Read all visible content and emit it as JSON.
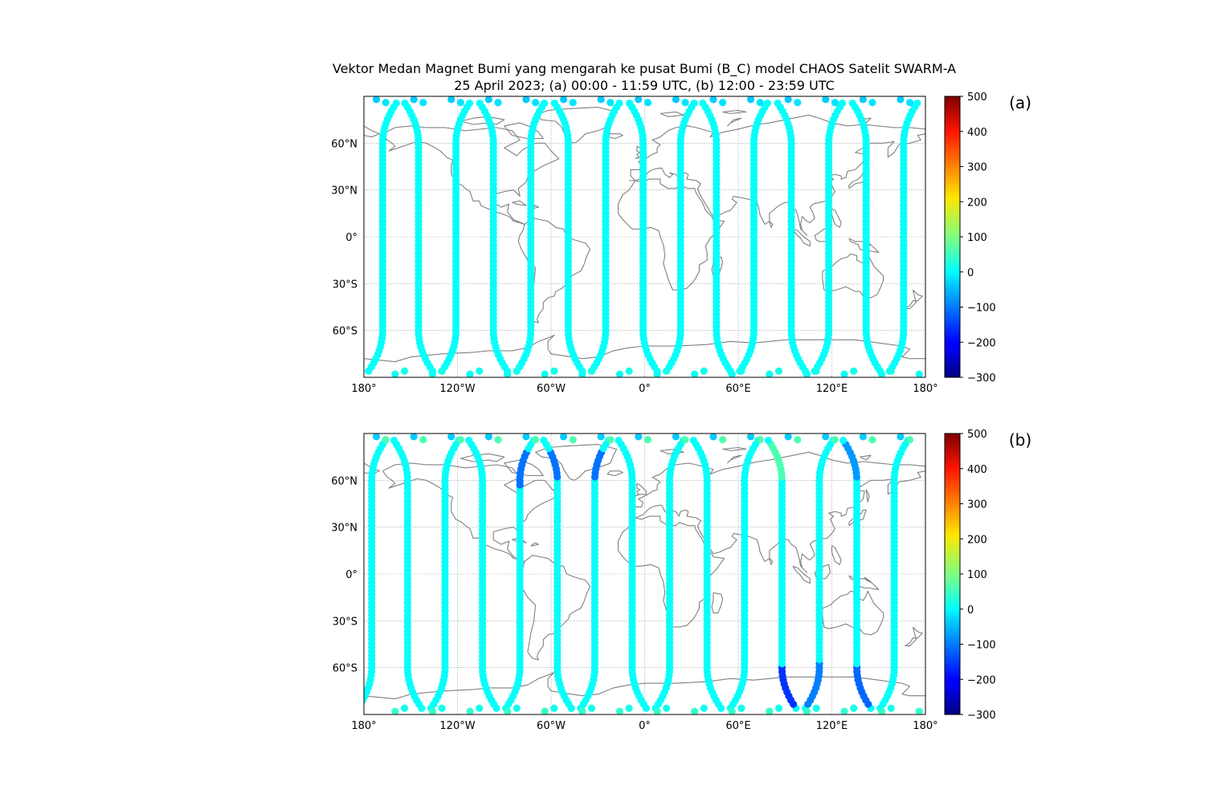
{
  "figure": {
    "title_line1": "Vektor Medan Magnet Bumi yang mengarah ke pusat Bumi (B_C) model CHAOS Satelit SWARM-A",
    "title_line2": "25 April 2023; (a) 00:00 - 11:59 UTC, (b) 12:00 - 23:59 UTC"
  },
  "chart_data": [
    {
      "type": "scatter",
      "panel_label": "(a)",
      "projection": "PlateCarree",
      "xlim": [
        -180,
        180
      ],
      "ylim": [
        -90,
        90
      ],
      "xticks": [
        {
          "value": -180,
          "label": "180°"
        },
        {
          "value": -120,
          "label": "120°W"
        },
        {
          "value": -60,
          "label": "60°W"
        },
        {
          "value": 0,
          "label": "0°"
        },
        {
          "value": 60,
          "label": "60°E"
        },
        {
          "value": 120,
          "label": "120°E"
        },
        {
          "value": 180,
          "label": "180°"
        }
      ],
      "yticks": [
        {
          "value": 60,
          "label": "60°N"
        },
        {
          "value": 30,
          "label": "30°N"
        },
        {
          "value": 0,
          "label": "0°"
        },
        {
          "value": -30,
          "label": "30°S"
        },
        {
          "value": -60,
          "label": "60°S"
        }
      ],
      "gridlines": true,
      "colorbar": {
        "colormap": "jet",
        "vmin": -300,
        "vmax": 500,
        "ticks": [
          500,
          400,
          300,
          200,
          100,
          0,
          -100,
          -200,
          -300
        ]
      },
      "tracks": [
        {
          "lon": -168,
          "b_c": 5
        },
        {
          "lon": -145,
          "b_c": 5
        },
        {
          "lon": -121,
          "b_c": 5
        },
        {
          "lon": -97,
          "b_c": 5
        },
        {
          "lon": -73,
          "b_c": 5
        },
        {
          "lon": -49,
          "b_c": 5
        },
        {
          "lon": -25,
          "b_c": 5
        },
        {
          "lon": -1,
          "b_c": 5
        },
        {
          "lon": 23,
          "b_c": 5
        },
        {
          "lon": 46,
          "b_c": 5
        },
        {
          "lon": 70,
          "b_c": 5
        },
        {
          "lon": 94,
          "b_c": 5
        },
        {
          "lon": 118,
          "b_c": 5
        },
        {
          "lon": 142,
          "b_c": 5
        },
        {
          "lon": 166,
          "b_c": 5
        }
      ],
      "polar_points": [
        {
          "lat": 88,
          "b_c": -40
        },
        {
          "lat": 86,
          "b_c": -20
        },
        {
          "lat": -88,
          "b_c": 10
        },
        {
          "lat": -86,
          "b_c": 15
        }
      ]
    },
    {
      "type": "scatter",
      "panel_label": "(b)",
      "projection": "PlateCarree",
      "xlim": [
        -180,
        180
      ],
      "ylim": [
        -90,
        90
      ],
      "xticks": [
        {
          "value": -180,
          "label": "180°"
        },
        {
          "value": -120,
          "label": "120°W"
        },
        {
          "value": -60,
          "label": "60°W"
        },
        {
          "value": 0,
          "label": "0°"
        },
        {
          "value": 60,
          "label": "60°E"
        },
        {
          "value": 120,
          "label": "120°E"
        },
        {
          "value": 180,
          "label": "180°"
        }
      ],
      "yticks": [
        {
          "value": 60,
          "label": "60°N"
        },
        {
          "value": 30,
          "label": "30°N"
        },
        {
          "value": 0,
          "label": "0°"
        },
        {
          "value": -30,
          "label": "30°S"
        },
        {
          "value": -60,
          "label": "60°S"
        }
      ],
      "gridlines": true,
      "colorbar": {
        "colormap": "jet",
        "vmin": -300,
        "vmax": 500,
        "ticks": [
          500,
          400,
          300,
          200,
          100,
          0,
          -100,
          -200,
          -300
        ]
      },
      "tracks": [
        {
          "lon": -175,
          "b_c": 5
        },
        {
          "lon": -152,
          "b_c": 5
        },
        {
          "lon": -128,
          "b_c": 5
        },
        {
          "lon": -104,
          "b_c": 5
        },
        {
          "lon": -80,
          "b_c": 5
        },
        {
          "lon": -56,
          "b_c": 5
        },
        {
          "lon": -32,
          "b_c": 5
        },
        {
          "lon": -8,
          "b_c": 5
        },
        {
          "lon": 16,
          "b_c": 5
        },
        {
          "lon": 40,
          "b_c": 5
        },
        {
          "lon": 64,
          "b_c": 5
        },
        {
          "lon": 88,
          "b_c": 5
        },
        {
          "lon": 112,
          "b_c": 5
        },
        {
          "lon": 136,
          "b_c": 5
        },
        {
          "lon": 160,
          "b_c": 5
        }
      ],
      "anomalies": [
        {
          "lon": -80,
          "lat_min": 55,
          "lat_max": 80,
          "b_c": -110
        },
        {
          "lon": -56,
          "lat_min": 60,
          "lat_max": 80,
          "b_c": -110
        },
        {
          "lon": -32,
          "lat_min": 62,
          "lat_max": 80,
          "b_c": -110
        },
        {
          "lon": 88,
          "lat_min": -85,
          "lat_max": -60,
          "b_c": -160
        },
        {
          "lon": 112,
          "lat_min": -85,
          "lat_max": -55,
          "b_c": -100
        },
        {
          "lon": 136,
          "lat_min": -85,
          "lat_max": -58,
          "b_c": -120
        },
        {
          "lon": 88,
          "lat_min": 62,
          "lat_max": 85,
          "b_c": 60
        },
        {
          "lon": 136,
          "lat_min": 60,
          "lat_max": 85,
          "b_c": -80
        }
      ],
      "polar_points": [
        {
          "lat": 88,
          "b_c": -40
        },
        {
          "lat": 86,
          "b_c": 60
        },
        {
          "lat": -88,
          "b_c": 40
        },
        {
          "lat": -86,
          "b_c": 15
        }
      ]
    }
  ]
}
